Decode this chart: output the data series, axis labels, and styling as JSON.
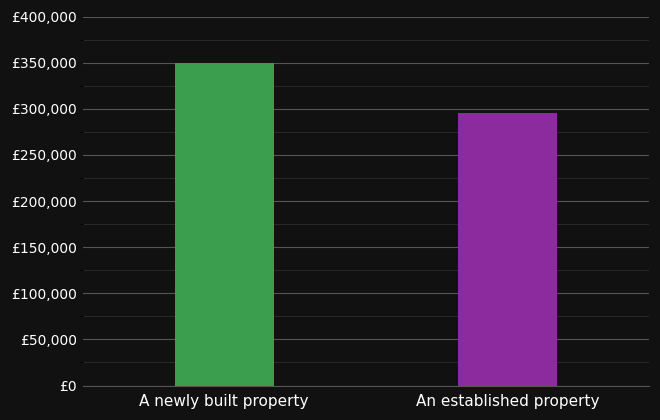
{
  "categories": [
    "A newly built property",
    "An established property"
  ],
  "values": [
    350000,
    295000
  ],
  "bar_colors": [
    "#3a9e4e",
    "#8b2b9e"
  ],
  "background_color": "#111111",
  "text_color": "#ffffff",
  "grid_color_major": "#555555",
  "grid_color_minor": "#333333",
  "ylim": [
    0,
    400000
  ],
  "yticks_major": [
    0,
    50000,
    100000,
    150000,
    200000,
    250000,
    300000,
    350000,
    400000
  ],
  "bar_width": 0.35,
  "figsize": [
    6.6,
    4.2
  ],
  "dpi": 100,
  "tick_fontsize": 10,
  "xlabel_fontsize": 11
}
